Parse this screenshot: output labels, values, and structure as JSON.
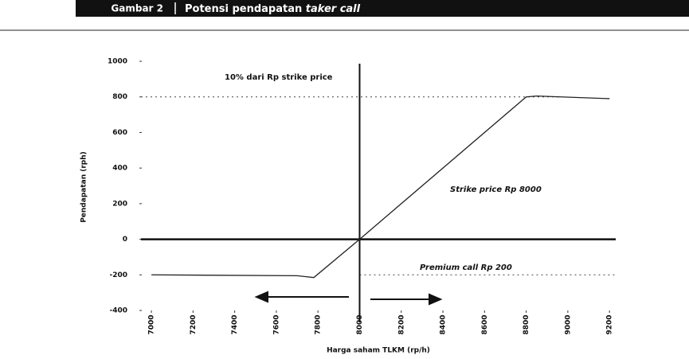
{
  "chart_data": {
    "type": "line",
    "figure_label": "Gambar 2",
    "title": "Potensi pendapatan",
    "title_italic": "taker call",
    "y_label": "Pendapatan (rph)",
    "x_label": "Harga saham TLKM (rp/h)",
    "annotations": [
      "10% dari Rp strike price",
      "Strike price Rp 8000",
      "Premium call Rp 200"
    ],
    "x": [
      7000,
      7700,
      7780,
      8000,
      8800,
      8850,
      9200
    ],
    "series": [
      {
        "name": "Pendapatan",
        "color": "#222",
        "values": [
          -200,
          -205,
          -215,
          0,
          800,
          805,
          790
        ]
      }
    ],
    "xlim": [
      6950,
      9230
    ],
    "ylim": [
      -400,
      1000
    ],
    "xticks": [
      7000,
      7200,
      7400,
      7600,
      7800,
      8000,
      8200,
      8400,
      8600,
      8800,
      9000,
      9200
    ],
    "yticks": [
      -400,
      -200,
      0,
      200,
      400,
      600,
      800,
      1000
    ],
    "reference_x": 8000,
    "dashed_levels": [
      800,
      -200
    ]
  }
}
